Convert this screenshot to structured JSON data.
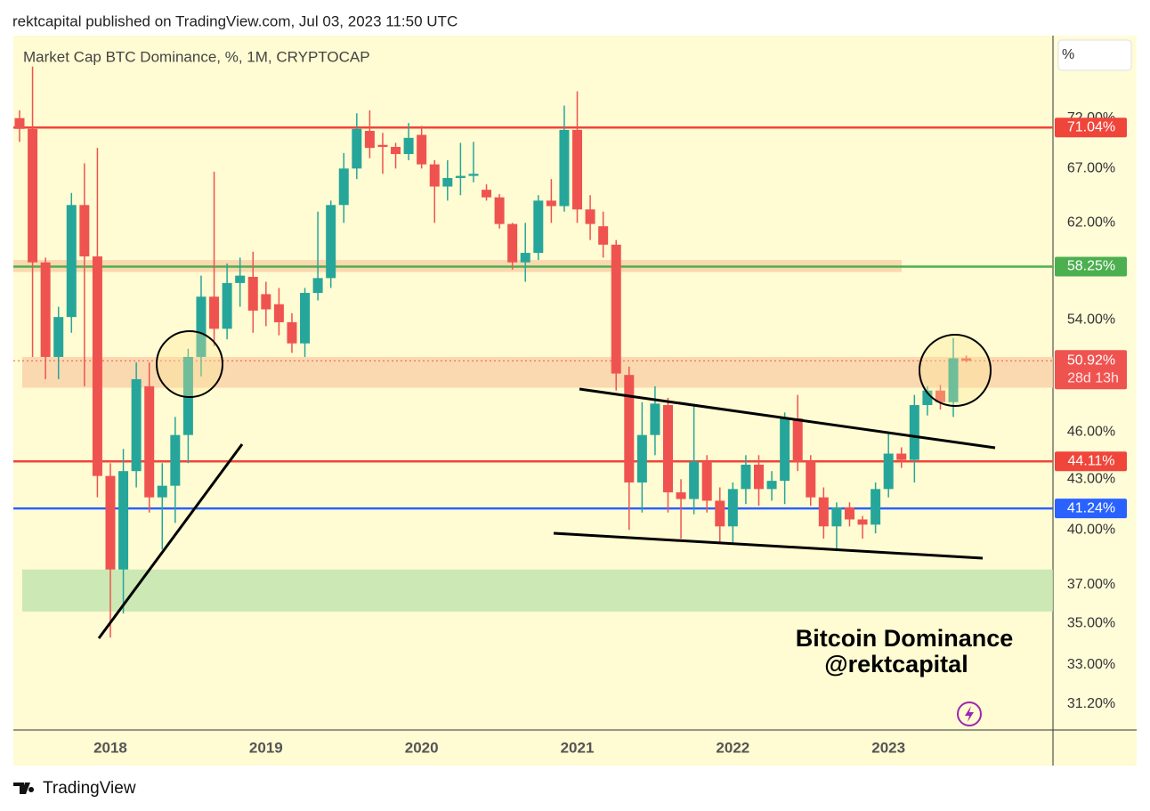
{
  "header": {
    "publisher": "rektcapital published on TradingView.com, Jul 03, 2023 11:50 UTC"
  },
  "footer": {
    "brand": "TradingView"
  },
  "chart_data": {
    "type": "candlestick",
    "title": "Market Cap BTC Dominance, %, 1M, CRYPTOCAP",
    "scale_mode": "%",
    "log_scale": true,
    "ylim": [
      30.06,
      81
    ],
    "yticks": [
      {
        "value": 72,
        "label": "72.00%"
      },
      {
        "value": 67,
        "label": "67.00%"
      },
      {
        "value": 62,
        "label": "62.00%"
      },
      {
        "value": 54,
        "label": "54.00%"
      },
      {
        "value": 46,
        "label": "46.00%"
      },
      {
        "value": 43,
        "label": "43.00%"
      },
      {
        "value": 40,
        "label": "40.00%"
      },
      {
        "value": 37,
        "label": "37.00%"
      },
      {
        "value": 35,
        "label": "35.00%"
      },
      {
        "value": 33,
        "label": "33.00%"
      },
      {
        "value": 31.2,
        "label": "31.20%"
      }
    ],
    "categories": [
      null,
      null,
      null,
      null,
      null,
      null,
      null,
      "2018",
      null,
      null,
      null,
      null,
      null,
      null,
      null,
      null,
      null,
      null,
      null,
      "2019",
      null,
      null,
      null,
      null,
      null,
      null,
      null,
      null,
      null,
      null,
      null,
      "2020",
      null,
      null,
      null,
      null,
      null,
      null,
      null,
      null,
      null,
      null,
      null,
      "2021",
      null,
      null,
      null,
      null,
      null,
      null,
      null,
      null,
      null,
      null,
      null,
      "2022",
      null,
      null,
      null,
      null,
      null,
      null,
      null,
      null,
      null,
      null,
      null,
      "2023",
      null,
      null,
      null,
      null,
      null,
      null
    ],
    "open": [
      72.0,
      70.9,
      58.6,
      51.2,
      54.2,
      63.6,
      59.1,
      43.2,
      37.8,
      43.5,
      49.1,
      41.9,
      42.6,
      45.8,
      51.2,
      55.8,
      53.3,
      56.9,
      57.4,
      56.0,
      55.2,
      53.8,
      52.2,
      56.1,
      57.3,
      63.6,
      67.0,
      70.7,
      69.3,
      69.1,
      68.4,
      70.3,
      67.4,
      65.3,
      66.1,
      66.3,
      65.0,
      64.3,
      61.9,
      58.6,
      59.4,
      64.0,
      63.5,
      70.8,
      63.2,
      61.7,
      60.1,
      49.9,
      42.8,
      45.8,
      47.8,
      42.2,
      41.8,
      44.1,
      41.7,
      40.2,
      42.4,
      43.9,
      42.4,
      42.9,
      46.9,
      44.1,
      41.9,
      40.2,
      41.3,
      40.6,
      40.3,
      42.4,
      44.6,
      44.2,
      47.8,
      48.8,
      48.0,
      51.1
    ],
    "high": [
      72.8,
      77.5,
      59.0,
      55.0,
      64.7,
      67.5,
      69.0,
      44.0,
      44.9,
      50.8,
      50.8,
      44.0,
      47.0,
      51.8,
      57.5,
      66.7,
      58.5,
      59.0,
      59.5,
      57.0,
      56.5,
      54.5,
      56.5,
      63.0,
      64.0,
      68.5,
      72.5,
      72.8,
      70.5,
      69.5,
      71.5,
      71.2,
      67.8,
      67.8,
      69.5,
      69.6,
      65.5,
      64.6,
      62.0,
      62.0,
      64.5,
      66.0,
      73.3,
      74.8,
      64.5,
      63.0,
      60.5,
      50.5,
      48.0,
      49.1,
      48.3,
      43.0,
      47.8,
      44.5,
      42.5,
      42.8,
      44.5,
      44.5,
      43.5,
      47.3,
      48.5,
      44.5,
      42.5,
      41.6,
      41.6,
      40.8,
      42.8,
      45.9,
      45.0,
      48.5,
      49.1,
      49.2,
      52.6,
      51.3
    ],
    "low": [
      69.6,
      51.2,
      49.6,
      49.6,
      53.0,
      49.1,
      41.9,
      34.3,
      35.5,
      42.5,
      41.0,
      38.9,
      40.4,
      44.0,
      49.8,
      52.0,
      52.5,
      55.0,
      53.0,
      53.5,
      52.8,
      51.5,
      51.2,
      55.5,
      56.5,
      62.0,
      66.0,
      68.0,
      66.5,
      67.0,
      67.8,
      67.0,
      62.0,
      64.0,
      64.5,
      65.7,
      64.0,
      61.5,
      58.0,
      57.0,
      58.8,
      62.0,
      63.0,
      62.0,
      60.5,
      59.0,
      48.8,
      40.0,
      41.0,
      44.5,
      41.0,
      39.5,
      40.9,
      41.0,
      39.3,
      39.2,
      41.5,
      41.4,
      41.7,
      41.5,
      43.5,
      41.4,
      39.5,
      38.8,
      40.2,
      39.5,
      39.8,
      41.9,
      43.7,
      42.8,
      47.1,
      47.5,
      47.0,
      50.8
    ],
    "close": [
      70.9,
      58.6,
      51.2,
      54.2,
      63.6,
      59.1,
      43.2,
      37.8,
      43.5,
      49.6,
      41.9,
      42.6,
      45.8,
      51.2,
      55.8,
      53.3,
      56.9,
      57.5,
      54.7,
      54.8,
      53.8,
      52.2,
      56.1,
      57.3,
      63.6,
      67.0,
      70.9,
      69.0,
      69.1,
      68.4,
      70.0,
      67.4,
      65.3,
      66.1,
      66.3,
      66.5,
      64.3,
      61.9,
      58.6,
      59.4,
      64.0,
      63.5,
      70.8,
      63.2,
      61.9,
      60.1,
      50.0,
      42.8,
      45.8,
      47.9,
      42.2,
      41.8,
      44.1,
      41.7,
      40.2,
      42.4,
      43.9,
      42.4,
      42.9,
      46.9,
      44.1,
      41.9,
      40.2,
      41.3,
      40.6,
      40.3,
      42.4,
      44.6,
      44.2,
      47.8,
      48.8,
      48.0,
      51.1,
      50.92
    ],
    "up_color": "#26a69a",
    "down_color": "#ef5350",
    "levels": [
      {
        "value": 71.04,
        "label": "71.04%",
        "color": "#f0453a"
      },
      {
        "value": 58.25,
        "label": "58.25%",
        "color": "#4caf50"
      },
      {
        "value": 50.92,
        "label": "50.92%",
        "countdown": "28d 13h",
        "color": "#ef5350",
        "dotted": true
      },
      {
        "value": 44.11,
        "label": "44.11%",
        "color": "#f0453a"
      },
      {
        "value": 41.24,
        "label": "41.24%",
        "color": "#2962ff"
      }
    ],
    "zones": [
      {
        "low": 57.8,
        "high": 58.8,
        "color": "#f9cfa8"
      },
      {
        "low": 49.0,
        "high": 51.2,
        "color": "#f9cfa8"
      },
      {
        "low": 35.6,
        "high": 37.8,
        "color": "#bfe3ad"
      }
    ],
    "annotations": [
      "Bitcoin Dominance",
      "@rektcapital"
    ]
  }
}
